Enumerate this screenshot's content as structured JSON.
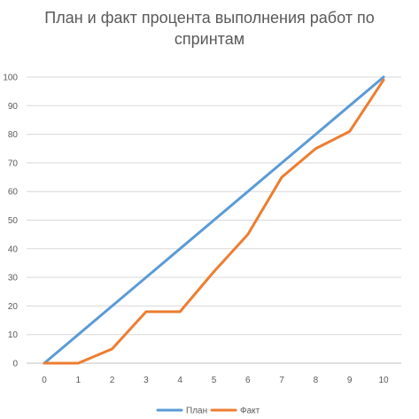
{
  "chart_data": {
    "type": "line",
    "title_line1": "План и факт процента выполнения работ по",
    "title_line2": "спринтам",
    "x": [
      0,
      1,
      2,
      3,
      4,
      5,
      6,
      7,
      8,
      9,
      10
    ],
    "ylim": [
      0,
      100
    ],
    "yticks": [
      0,
      10,
      20,
      30,
      40,
      50,
      60,
      70,
      80,
      90,
      100
    ],
    "grid": true,
    "legend_position": "bottom",
    "series": [
      {
        "name": "План",
        "color": "#5B9BD5",
        "values": [
          0,
          10,
          20,
          30,
          40,
          50,
          60,
          70,
          80,
          90,
          100
        ]
      },
      {
        "name": "Факт",
        "color": "#ED7D31",
        "values": [
          0,
          0,
          5,
          18,
          18,
          32,
          45,
          65,
          75,
          81,
          99
        ]
      }
    ]
  }
}
